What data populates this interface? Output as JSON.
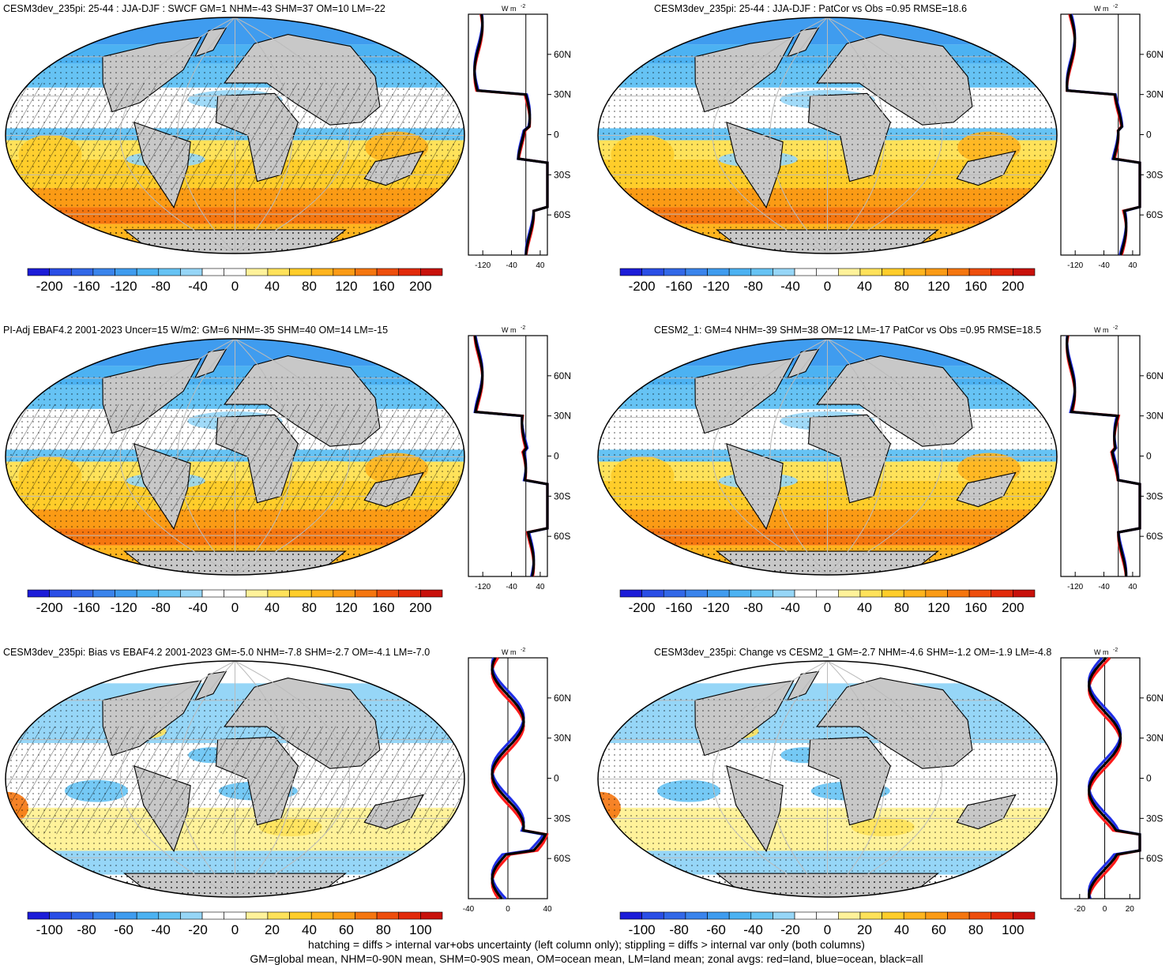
{
  "panels": [
    {
      "title": "CESM3dev_235pi: 25-44 : JJA-DJF : SWCF GM=1 NHM=-43 SHM=37 OM=10 LM=-22",
      "colorbar": [
        "-200",
        "-160",
        "-120",
        "-80",
        "-40",
        "0",
        "40",
        "80",
        "120",
        "160",
        "200"
      ],
      "zonal_ticks": [
        "-120",
        "-40",
        "40"
      ],
      "zonal_range": [
        -160,
        60
      ],
      "hatching": true,
      "land": [],
      "ocean": [],
      "all": []
    },
    {
      "title": "CESM3dev_235pi: 25-44 : JJA-DJF : PatCor vs Obs =0.95 RMSE=18.6",
      "colorbar": [
        "-200",
        "-160",
        "-120",
        "-80",
        "-40",
        "0",
        "40",
        "80",
        "120",
        "160",
        "200"
      ],
      "zonal_ticks": [
        "-120",
        "-40",
        "40"
      ],
      "zonal_range": [
        -160,
        60
      ],
      "hatching": false,
      "land": [],
      "ocean": [],
      "all": []
    },
    {
      "title": "PI-Adj EBAF4.2 2001-2023 Uncer=15 W/m2: GM=6 NHM=-35 SHM=40 OM=14 LM=-15",
      "colorbar": [
        "-200",
        "-160",
        "-120",
        "-80",
        "-40",
        "0",
        "40",
        "80",
        "120",
        "160",
        "200"
      ],
      "zonal_ticks": [
        "-120",
        "-40",
        "40"
      ],
      "zonal_range": [
        -160,
        60
      ],
      "hatching": true,
      "land": [],
      "ocean": [],
      "all": []
    },
    {
      "title": "CESM2_1: GM=4 NHM=-39 SHM=38 OM=12 LM=-17 PatCor vs Obs =0.95 RMSE=18.5",
      "colorbar": [
        "-200",
        "-160",
        "-120",
        "-80",
        "-40",
        "0",
        "40",
        "80",
        "120",
        "160",
        "200"
      ],
      "zonal_ticks": [
        "-120",
        "-40",
        "40"
      ],
      "zonal_range": [
        -160,
        60
      ],
      "hatching": false,
      "land": [],
      "ocean": [],
      "all": []
    },
    {
      "title": "CESM3dev_235pi: Bias vs EBAF4.2 2001-2023 GM=-5.0 NHM=-7.8 SHM=-2.7 OM=-4.1 LM=-7.0",
      "colorbar": [
        "-100",
        "-80",
        "-60",
        "-40",
        "-20",
        "0",
        "20",
        "40",
        "60",
        "80",
        "100"
      ],
      "zonal_ticks": [
        "-40",
        "0",
        "40"
      ],
      "zonal_range": [
        -40,
        40
      ],
      "hatching": true,
      "land": [],
      "ocean": [],
      "all": []
    },
    {
      "title": "CESM3dev_235pi: Change vs CESM2_1 GM=-2.7 NHM=-4.6 SHM=-1.2 OM=-1.9 LM=-4.8",
      "colorbar": [
        "-100",
        "-80",
        "-60",
        "-40",
        "-20",
        "0",
        "20",
        "40",
        "60",
        "80",
        "100"
      ],
      "zonal_ticks": [
        "-20",
        "0",
        "20"
      ],
      "zonal_range": [
        -35,
        28
      ],
      "hatching": false,
      "land": [],
      "ocean": [],
      "all": []
    }
  ],
  "lat_labels": [
    "60N",
    "30N",
    "0",
    "30S",
    "60S"
  ],
  "zonal_unit": "W m",
  "zonal_unit_sup": "-2",
  "palette": [
    "#1c1cd8",
    "#2a4ee6",
    "#3268e8",
    "#3a84ec",
    "#3f9cef",
    "#4cb2f2",
    "#66c3f4",
    "#96d6f7",
    "#ffffff",
    "#ffffff",
    "#fff29a",
    "#ffe25a",
    "#ffcd2a",
    "#ffb41e",
    "#fb9b15",
    "#f5760f",
    "#ee4e0c",
    "#e22a0a",
    "#c8110b"
  ],
  "chart_data": [
    {
      "type": "heatmap",
      "title": "CESM3dev_235pi: 25-44 : JJA-DJF : SWCF GM=1 NHM=-43 SHM=37 OM=10 LM=-22",
      "levels": [
        -200,
        -160,
        -120,
        -80,
        -40,
        0,
        40,
        80,
        120,
        160,
        200
      ],
      "units": "W m-2",
      "zonal_ylabels": [
        "60N",
        "30N",
        "0",
        "30S",
        "60S"
      ]
    },
    {
      "type": "heatmap",
      "title": "CESM3dev_235pi: 25-44 : JJA-DJF : PatCor vs Obs =0.95 RMSE=18.6",
      "levels": [
        -200,
        -160,
        -120,
        -80,
        -40,
        0,
        40,
        80,
        120,
        160,
        200
      ],
      "units": "W m-2"
    },
    {
      "type": "heatmap",
      "title": "PI-Adj EBAF4.2 2001-2023 Uncer=15 W/m2: GM=6 NHM=-35 SHM=40 OM=14 LM=-15",
      "levels": [
        -200,
        -160,
        -120,
        -80,
        -40,
        0,
        40,
        80,
        120,
        160,
        200
      ],
      "units": "W m-2"
    },
    {
      "type": "heatmap",
      "title": "CESM2_1: GM=4 NHM=-39 SHM=38 OM=12 LM=-17 PatCor vs Obs =0.95 RMSE=18.5",
      "levels": [
        -200,
        -160,
        -120,
        -80,
        -40,
        0,
        40,
        80,
        120,
        160,
        200
      ],
      "units": "W m-2"
    },
    {
      "type": "heatmap",
      "title": "CESM3dev_235pi: Bias vs EBAF4.2 2001-2023 GM=-5.0 NHM=-7.8 SHM=-2.7 OM=-4.1 LM=-7.0",
      "levels": [
        -100,
        -80,
        -60,
        -40,
        -20,
        0,
        20,
        40,
        60,
        80,
        100
      ],
      "units": "W m-2"
    },
    {
      "type": "heatmap",
      "title": "CESM3dev_235pi: Change vs CESM2_1 GM=-2.7 NHM=-4.6 SHM=-1.2 OM=-1.9 LM=-4.8",
      "levels": [
        -100,
        -80,
        -60,
        -40,
        -20,
        0,
        20,
        40,
        60,
        80,
        100
      ],
      "units": "W m-2"
    }
  ],
  "footer": {
    "line1": "hatching = diffs > internal var+obs uncertainty (left column only); stippling = diffs > internal var only (both columns)",
    "line2": "GM=global mean, NHM=0-90N mean, SHM=0-90S mean, OM=ocean mean, LM=land mean; zonal avgs: red=land, blue=ocean, black=all"
  }
}
